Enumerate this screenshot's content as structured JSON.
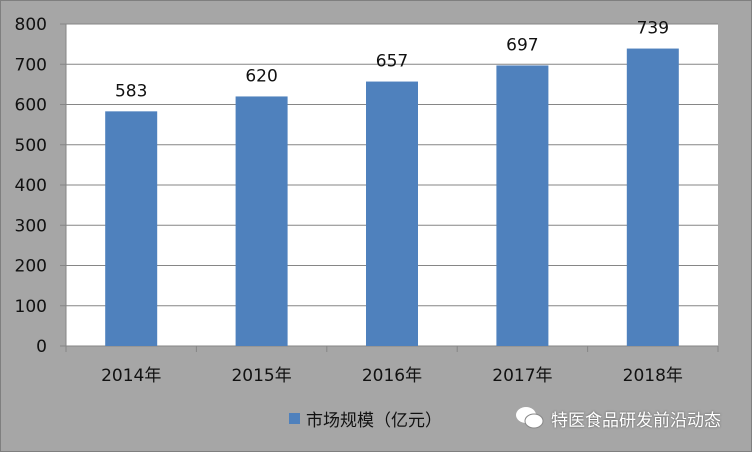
{
  "chart_data": {
    "type": "bar",
    "categories": [
      "2014年",
      "2015年",
      "2016年",
      "2017年",
      "2018年"
    ],
    "series": [
      {
        "name": "市场规模（亿元）",
        "values": [
          583,
          620,
          657,
          697,
          739
        ],
        "color": "#4f81bd"
      }
    ],
    "ylim": [
      0,
      800
    ],
    "yticks": [
      0,
      100,
      200,
      300,
      400,
      500,
      600,
      700,
      800
    ],
    "grid": true,
    "legend": "bottom"
  },
  "watermark": {
    "icon": "wechat-icon",
    "text": "特医食品研发前沿动态"
  }
}
